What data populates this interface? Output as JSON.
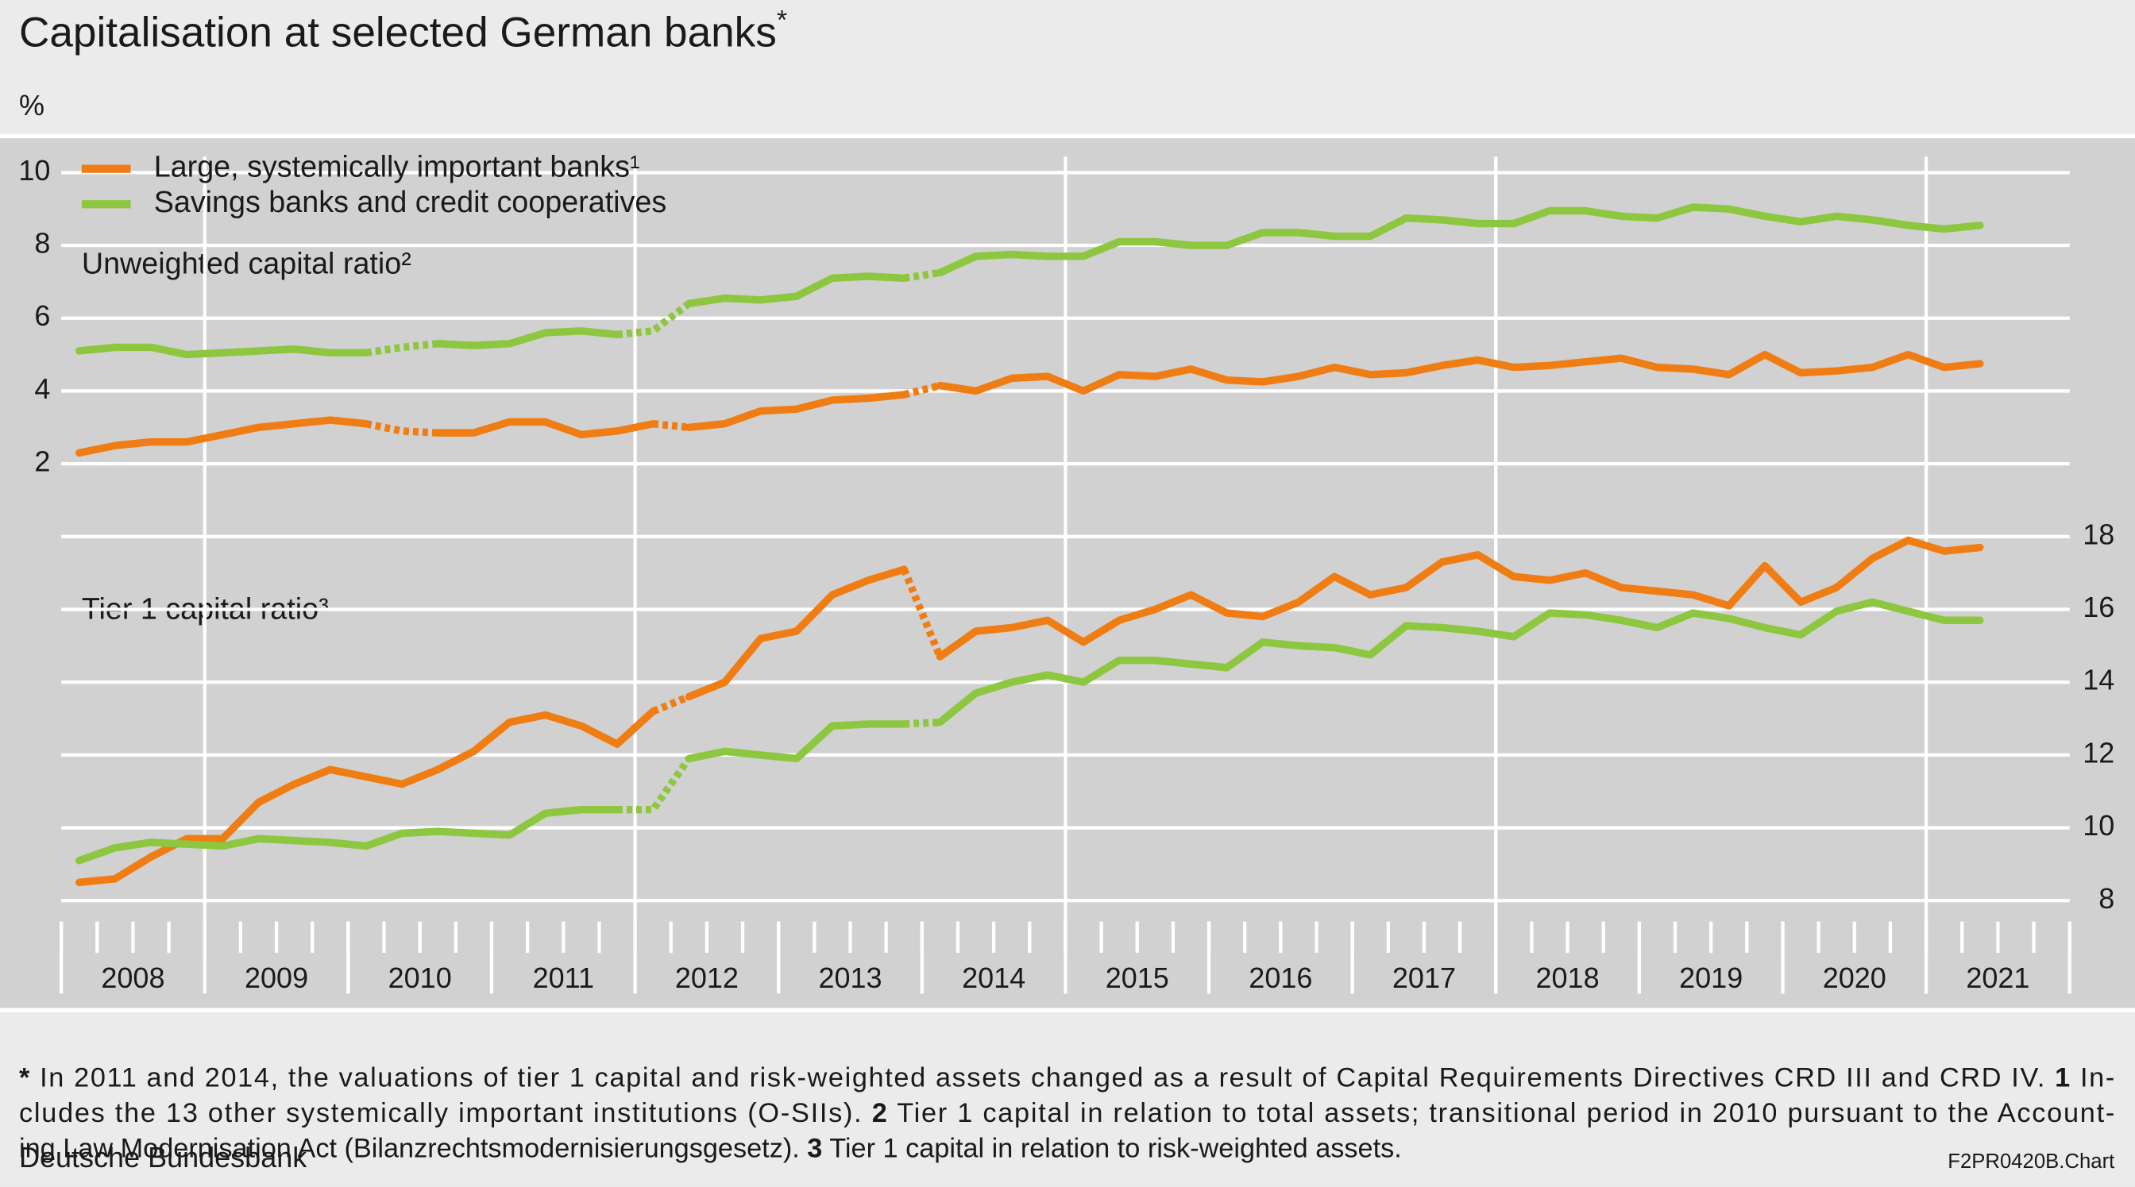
{
  "chart_data": {
    "type": "line",
    "title": "Capitalisation at selected German banks",
    "title_marker": "*",
    "y_unit": "%",
    "unweighted_label": "Unweighted capital ratio²",
    "tier1_label": "Tier 1 capital ratio³",
    "x": [
      2008.125,
      2008.375,
      2008.625,
      2008.875,
      2009.125,
      2009.375,
      2009.625,
      2009.875,
      2010.125,
      2010.375,
      2010.625,
      2010.875,
      2011.125,
      2011.375,
      2011.625,
      2011.875,
      2012.125,
      2012.375,
      2012.625,
      2012.875,
      2013.125,
      2013.375,
      2013.625,
      2013.875,
      2014.125,
      2014.375,
      2014.625,
      2014.875,
      2015.125,
      2015.375,
      2015.625,
      2015.875,
      2016.125,
      2016.375,
      2016.625,
      2016.875,
      2017.125,
      2017.375,
      2017.625,
      2017.875,
      2018.125,
      2018.375,
      2018.625,
      2018.875,
      2019.125,
      2019.375,
      2019.625,
      2019.875,
      2020.125,
      2020.375,
      2020.625,
      2020.875,
      2021.125,
      2021.375
    ],
    "xlim": [
      2008,
      2022
    ],
    "xticks": [
      2008,
      2009,
      2010,
      2011,
      2012,
      2013,
      2014,
      2015,
      2016,
      2017,
      2018,
      2019,
      2020,
      2021
    ],
    "ylim": [
      -10.5,
      11
    ],
    "yticks": [
      2,
      4,
      6,
      8,
      10
    ],
    "y2lim": [
      7.5,
      29
    ],
    "y2ticks": [
      8,
      10,
      12,
      14,
      16,
      18
    ],
    "grid": true,
    "series": [
      {
        "name": "Large, systemically important banks¹",
        "color": "#ef7d14",
        "unweighted": {
          "axis": "y",
          "dashed_segments": [
            8,
            9,
            16,
            23
          ],
          "values": [
            2.3,
            2.5,
            2.6,
            2.6,
            2.8,
            3.0,
            3.1,
            3.2,
            3.1,
            2.9,
            2.85,
            2.85,
            3.15,
            3.15,
            2.8,
            2.9,
            3.1,
            3.0,
            3.1,
            3.45,
            3.5,
            3.75,
            3.8,
            3.9,
            4.15,
            4.0,
            4.35,
            4.4,
            4.0,
            4.45,
            4.4,
            4.6,
            4.3,
            4.25,
            4.4,
            4.65,
            4.45,
            4.5,
            4.7,
            4.85,
            4.65,
            4.7,
            4.8,
            4.9,
            4.65,
            4.6,
            4.45,
            5.0,
            4.5,
            4.55,
            4.65,
            5.0,
            4.65,
            4.75
          ]
        },
        "tier1": {
          "axis": "y2",
          "dashed_segments": [
            16,
            23
          ],
          "values": [
            8.5,
            8.6,
            9.2,
            9.7,
            9.7,
            10.7,
            11.2,
            11.6,
            11.4,
            11.2,
            11.6,
            12.1,
            12.9,
            13.1,
            12.8,
            12.3,
            13.2,
            13.6,
            14.0,
            15.2,
            15.4,
            16.4,
            16.8,
            17.1,
            14.7,
            15.4,
            15.5,
            15.7,
            15.1,
            15.7,
            16.0,
            16.4,
            15.9,
            15.8,
            16.2,
            16.9,
            16.4,
            16.6,
            17.3,
            17.5,
            16.9,
            16.8,
            17.0,
            16.6,
            16.5,
            16.4,
            16.1,
            17.2,
            16.2,
            16.6,
            17.4,
            17.9,
            17.6,
            17.7
          ]
        }
      },
      {
        "name": "Savings banks and credit cooperatives",
        "color": "#8dc63f",
        "unweighted": {
          "axis": "y",
          "dashed_segments": [
            8,
            9,
            15,
            16,
            23
          ],
          "values": [
            5.1,
            5.2,
            5.2,
            5.0,
            5.05,
            5.1,
            5.15,
            5.05,
            5.05,
            5.2,
            5.3,
            5.25,
            5.3,
            5.6,
            5.65,
            5.55,
            5.65,
            6.4,
            6.55,
            6.5,
            6.6,
            7.1,
            7.15,
            7.1,
            7.25,
            7.7,
            7.75,
            7.7,
            7.7,
            8.1,
            8.1,
            8.0,
            8.0,
            8.35,
            8.35,
            8.25,
            8.25,
            8.75,
            8.7,
            8.6,
            8.6,
            8.95,
            8.95,
            8.8,
            8.75,
            9.05,
            9.0,
            8.8,
            8.65,
            8.8,
            8.7,
            8.55,
            8.45,
            8.55
          ]
        },
        "tier1": {
          "axis": "y2",
          "dashed_segments": [
            15,
            16,
            23
          ],
          "values": [
            9.1,
            9.45,
            9.6,
            9.55,
            9.5,
            9.7,
            9.65,
            9.6,
            9.5,
            9.85,
            9.9,
            9.85,
            9.8,
            10.4,
            10.5,
            10.5,
            10.5,
            11.9,
            12.1,
            12.0,
            11.9,
            12.8,
            12.85,
            12.85,
            12.9,
            13.7,
            14.0,
            14.2,
            14.0,
            14.6,
            14.6,
            14.5,
            14.4,
            15.1,
            15.0,
            14.95,
            14.75,
            15.55,
            15.5,
            15.4,
            15.25,
            15.9,
            15.85,
            15.7,
            15.5,
            15.9,
            15.75,
            15.5,
            15.3,
            15.95,
            16.2,
            15.95,
            15.7,
            15.7
          ]
        }
      }
    ],
    "footnote": {
      "lines": [
        [
          {
            "text": "*",
            "bold": true
          },
          {
            "text": " In 2011 and 2014, the valuations of tier 1 capital and risk-weighted assets changed as a result of Capital Requirements Directives CRD III and CRD IV. "
          },
          {
            "text": "1",
            "bold": true
          },
          {
            "text": " In-"
          }
        ],
        [
          {
            "text": "cludes the 13 other systemically important institutions (O-SIIs). "
          },
          {
            "text": "2",
            "bold": true
          },
          {
            "text": " Tier 1 capital in relation to total assets; transitional period in 2010 pursuant to the Account-"
          }
        ],
        [
          {
            "text": "ing Law Modernisation Act (Bilanzrechtsmodernisierungsgesetz). "
          },
          {
            "text": "3",
            "bold": true
          },
          {
            "text": " Tier 1 capital in relation to risk-weighted assets."
          }
        ]
      ]
    },
    "source": "Deutsche Bundesbank",
    "chart_code": "F2PR0420B.Chart"
  }
}
